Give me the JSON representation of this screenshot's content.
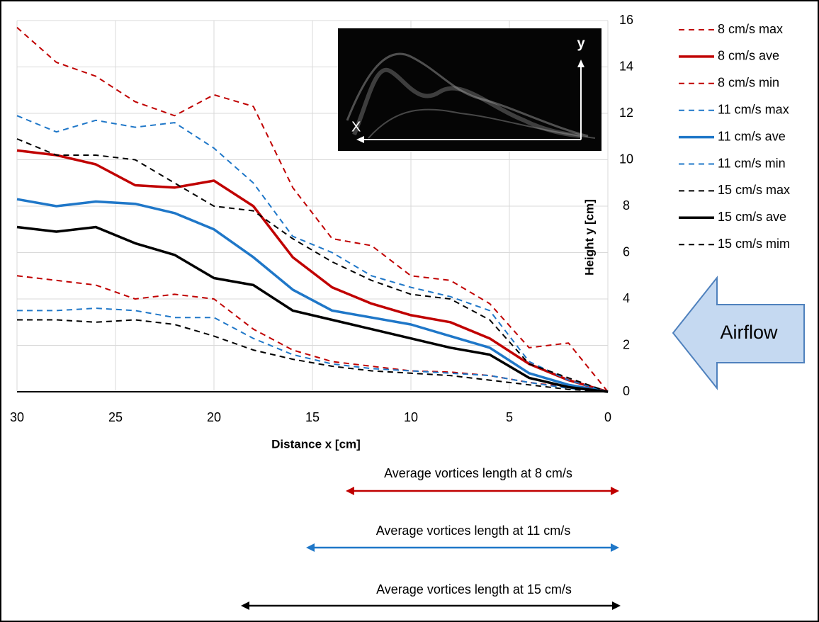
{
  "chart_data": {
    "type": "line",
    "x_label": "Distance x [cm]",
    "y_label": "Height y [cm]",
    "x": [
      30,
      28,
      26,
      24,
      22,
      20,
      18,
      16,
      14,
      12,
      10,
      8,
      6,
      4,
      2,
      0
    ],
    "xlim": [
      30,
      0
    ],
    "xticks": [
      30,
      25,
      20,
      15,
      10,
      5,
      0
    ],
    "ylim": [
      0,
      16
    ],
    "yticks": [
      0,
      2,
      4,
      6,
      8,
      10,
      12,
      14,
      16
    ],
    "grid": true,
    "legend": "right",
    "series": [
      {
        "name": "8 cm/s max",
        "color": "#c00000",
        "style": "dashed",
        "values": [
          15.7,
          14.2,
          13.6,
          12.5,
          11.9,
          12.8,
          12.3,
          8.8,
          6.6,
          6.3,
          5.0,
          4.8,
          3.8,
          1.9,
          2.1,
          0
        ]
      },
      {
        "name": "8 cm/s ave",
        "color": "#c00000",
        "style": "solid",
        "values": [
          10.4,
          10.2,
          9.8,
          8.9,
          8.8,
          9.1,
          8.0,
          5.8,
          4.5,
          3.8,
          3.3,
          3.0,
          2.3,
          1.2,
          0.5,
          0
        ]
      },
      {
        "name": "8 cm/s min",
        "color": "#c00000",
        "style": "dashed",
        "values": [
          5.0,
          4.8,
          4.6,
          4.0,
          4.2,
          4.0,
          2.7,
          1.8,
          1.3,
          1.1,
          0.9,
          0.85,
          0.7,
          0.4,
          0.2,
          0
        ]
      },
      {
        "name": "11 cm/s max",
        "color": "#1f77c8",
        "style": "dashed",
        "values": [
          11.9,
          11.2,
          11.7,
          11.4,
          11.6,
          10.5,
          9.0,
          6.7,
          6.0,
          5.0,
          4.5,
          4.1,
          3.5,
          1.3,
          0.5,
          0
        ]
      },
      {
        "name": "11 cm/s ave",
        "color": "#1f77c8",
        "style": "solid",
        "values": [
          8.3,
          8.0,
          8.2,
          8.1,
          7.7,
          7.0,
          5.8,
          4.4,
          3.5,
          3.2,
          2.9,
          2.4,
          1.9,
          0.8,
          0.3,
          0
        ]
      },
      {
        "name": "11 cm/s min",
        "color": "#1f77c8",
        "style": "dashed",
        "values": [
          3.5,
          3.5,
          3.6,
          3.5,
          3.2,
          3.2,
          2.3,
          1.6,
          1.2,
          1.0,
          0.9,
          0.8,
          0.7,
          0.4,
          0.15,
          0
        ]
      },
      {
        "name": "15 cm/s max",
        "color": "#000000",
        "style": "dashed",
        "values": [
          10.9,
          10.2,
          10.2,
          10.0,
          9.0,
          8.0,
          7.8,
          6.6,
          5.6,
          4.8,
          4.2,
          4.0,
          3.1,
          1.2,
          0.6,
          0
        ]
      },
      {
        "name": "15 cm/s ave",
        "color": "#000000",
        "style": "solid",
        "values": [
          7.1,
          6.9,
          7.1,
          6.4,
          5.9,
          4.9,
          4.6,
          3.5,
          3.1,
          2.7,
          2.3,
          1.9,
          1.6,
          0.6,
          0.2,
          0
        ]
      },
      {
        "name": "15 cm/s mim",
        "color": "#000000",
        "style": "dashed",
        "values": [
          3.1,
          3.1,
          3.0,
          3.1,
          2.9,
          2.4,
          1.8,
          1.4,
          1.1,
          0.9,
          0.8,
          0.7,
          0.5,
          0.3,
          0.1,
          0
        ]
      }
    ],
    "annotations": [
      "Average vortices length at 8 cm/s",
      "Average vortices length at 11 cm/s",
      "Average vortices length at 15 cm/s"
    ],
    "airflow_label": "Airflow",
    "inset_labels": [
      "X",
      "y"
    ]
  }
}
